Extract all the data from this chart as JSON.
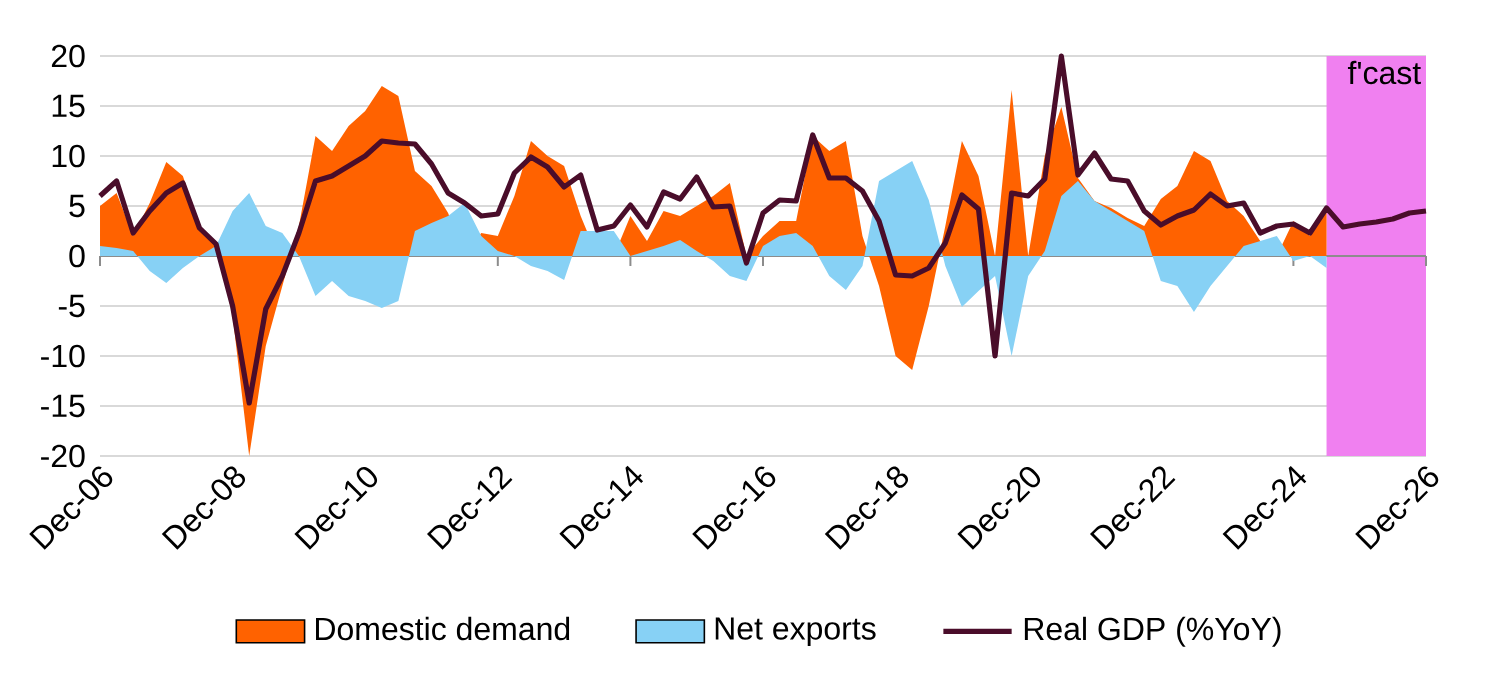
{
  "chart_data": {
    "type": "area",
    "x": [
      "2006-12",
      "2007-03",
      "2007-06",
      "2007-09",
      "2007-12",
      "2008-03",
      "2008-06",
      "2008-09",
      "2008-12",
      "2009-03",
      "2009-06",
      "2009-09",
      "2009-12",
      "2010-03",
      "2010-06",
      "2010-09",
      "2010-12",
      "2011-03",
      "2011-06",
      "2011-09",
      "2011-12",
      "2012-03",
      "2012-06",
      "2012-09",
      "2012-12",
      "2013-03",
      "2013-06",
      "2013-09",
      "2013-12",
      "2014-03",
      "2014-06",
      "2014-09",
      "2014-12",
      "2015-03",
      "2015-06",
      "2015-09",
      "2015-12",
      "2016-03",
      "2016-06",
      "2016-09",
      "2016-12",
      "2017-03",
      "2017-06",
      "2017-09",
      "2017-12",
      "2018-03",
      "2018-06",
      "2018-09",
      "2018-12",
      "2019-03",
      "2019-06",
      "2019-09",
      "2019-12",
      "2020-03",
      "2020-06",
      "2020-09",
      "2020-12",
      "2021-03",
      "2021-06",
      "2021-09",
      "2021-12",
      "2022-03",
      "2022-06",
      "2022-09",
      "2022-12",
      "2023-03",
      "2023-06",
      "2023-09",
      "2023-12",
      "2024-03",
      "2024-06",
      "2024-09",
      "2024-12",
      "2025-03",
      "2025-06",
      "2025-09",
      "2025-12",
      "2026-03",
      "2026-06",
      "2026-09",
      "2026-12"
    ],
    "series": [
      {
        "name": "Domestic demand",
        "color": "#ff6200",
        "values": [
          5,
          6.3,
          2,
          5.3,
          9.4,
          8,
          3,
          1.3,
          -6,
          -20,
          -9,
          -3,
          3,
          12,
          10.5,
          13,
          14.5,
          17,
          16,
          8.5,
          7,
          4.3,
          0,
          2.3,
          2,
          6,
          11.5,
          10,
          9,
          4,
          0,
          0,
          4,
          1.5,
          4.5,
          4,
          5,
          6,
          7.3,
          0,
          2,
          3.5,
          3.5,
          12,
          10.5,
          11.5,
          2,
          -3,
          -10,
          -11.4,
          -5,
          3,
          11.5,
          8,
          0,
          16.6,
          0,
          10,
          14.9,
          7.8,
          5.5,
          4.8,
          3.8,
          3,
          5.7,
          7,
          10.5,
          9.5,
          5.5,
          4,
          1.5,
          0,
          3.5,
          2,
          5,
          null,
          null,
          null,
          null,
          null,
          null
        ]
      },
      {
        "name": "Net exports",
        "color": "#87d1f5",
        "values": [
          1,
          0.8,
          0.5,
          -1.5,
          -2.7,
          -1.2,
          0,
          1,
          4.5,
          6.3,
          3,
          2.3,
          0,
          -4,
          -2.5,
          -4,
          -4.5,
          -5.2,
          -4.5,
          2.5,
          3.3,
          4,
          5.3,
          2,
          0.5,
          0,
          -1,
          -1.5,
          -2.4,
          2.5,
          2.5,
          2.5,
          0,
          0.5,
          1,
          1.6,
          0.5,
          -0.5,
          -2,
          -2.5,
          1,
          2,
          2.3,
          1,
          -2,
          -3.4,
          -1,
          7.5,
          8.5,
          9.5,
          5.6,
          -1,
          -5.1,
          -3.5,
          -2,
          -10,
          -2,
          0.5,
          6,
          7.5,
          5.5,
          4.5,
          3.5,
          2.5,
          -2.5,
          -3,
          -5.6,
          -3,
          -1,
          1,
          1.5,
          2,
          -0.5,
          0,
          -1.2,
          null,
          null,
          null,
          null,
          null,
          null
        ]
      },
      {
        "name": "Real GDP (%YoY)",
        "type": "line",
        "color": "#4a0d2a",
        "values": [
          6,
          7.5,
          2.3,
          4.5,
          6.3,
          7.3,
          2.8,
          1.2,
          -5,
          -14.7,
          -5.3,
          -2,
          2.3,
          7.5,
          8,
          9,
          10,
          11.5,
          11.3,
          11.2,
          9.2,
          6.3,
          5.3,
          4,
          4.2,
          8.3,
          9.9,
          8.9,
          6.9,
          8.1,
          2.6,
          3,
          5.1,
          2.9,
          6.4,
          5.7,
          7.9,
          4.9,
          5,
          -0.7,
          4.3,
          5.6,
          5.5,
          12.1,
          7.8,
          7.8,
          6.5,
          3.5,
          -1.9,
          -2,
          -1.2,
          1.3,
          6.1,
          4.7,
          -10,
          6.3,
          6,
          7.7,
          20,
          8.1,
          10.3,
          7.7,
          7.5,
          4.5,
          3.1,
          4,
          4.6,
          6.2,
          5,
          5.3,
          2.3,
          3,
          3.2,
          2.3,
          4.8,
          2.9,
          3.2,
          3.4,
          3.7,
          4.3,
          4.5
        ]
      }
    ],
    "xlim": [
      "2006-12",
      "2026-12"
    ],
    "xticks": [
      {
        "value": "2006-12",
        "label": "Dec-06"
      },
      {
        "value": "2008-12",
        "label": "Dec-08"
      },
      {
        "value": "2010-12",
        "label": "Dec-10"
      },
      {
        "value": "2012-12",
        "label": "Dec-12"
      },
      {
        "value": "2014-12",
        "label": "Dec-14"
      },
      {
        "value": "2016-12",
        "label": "Dec-16"
      },
      {
        "value": "2018-12",
        "label": "Dec-18"
      },
      {
        "value": "2020-12",
        "label": "Dec-20"
      },
      {
        "value": "2022-12",
        "label": "Dec-22"
      },
      {
        "value": "2024-12",
        "label": "Dec-24"
      },
      {
        "value": "2026-12",
        "label": "Dec-26"
      }
    ],
    "ylim": [
      -20,
      20
    ],
    "yticks": [
      -20,
      -15,
      -10,
      -5,
      0,
      5,
      10,
      15,
      20
    ],
    "bands": [
      {
        "axis": "x",
        "from": "2025-06",
        "to": "2026-12",
        "label": "f'cast",
        "color": "#f080f0"
      }
    ],
    "grid": "y",
    "legend": "bottom",
    "marker": "none",
    "line_style": "solid"
  }
}
